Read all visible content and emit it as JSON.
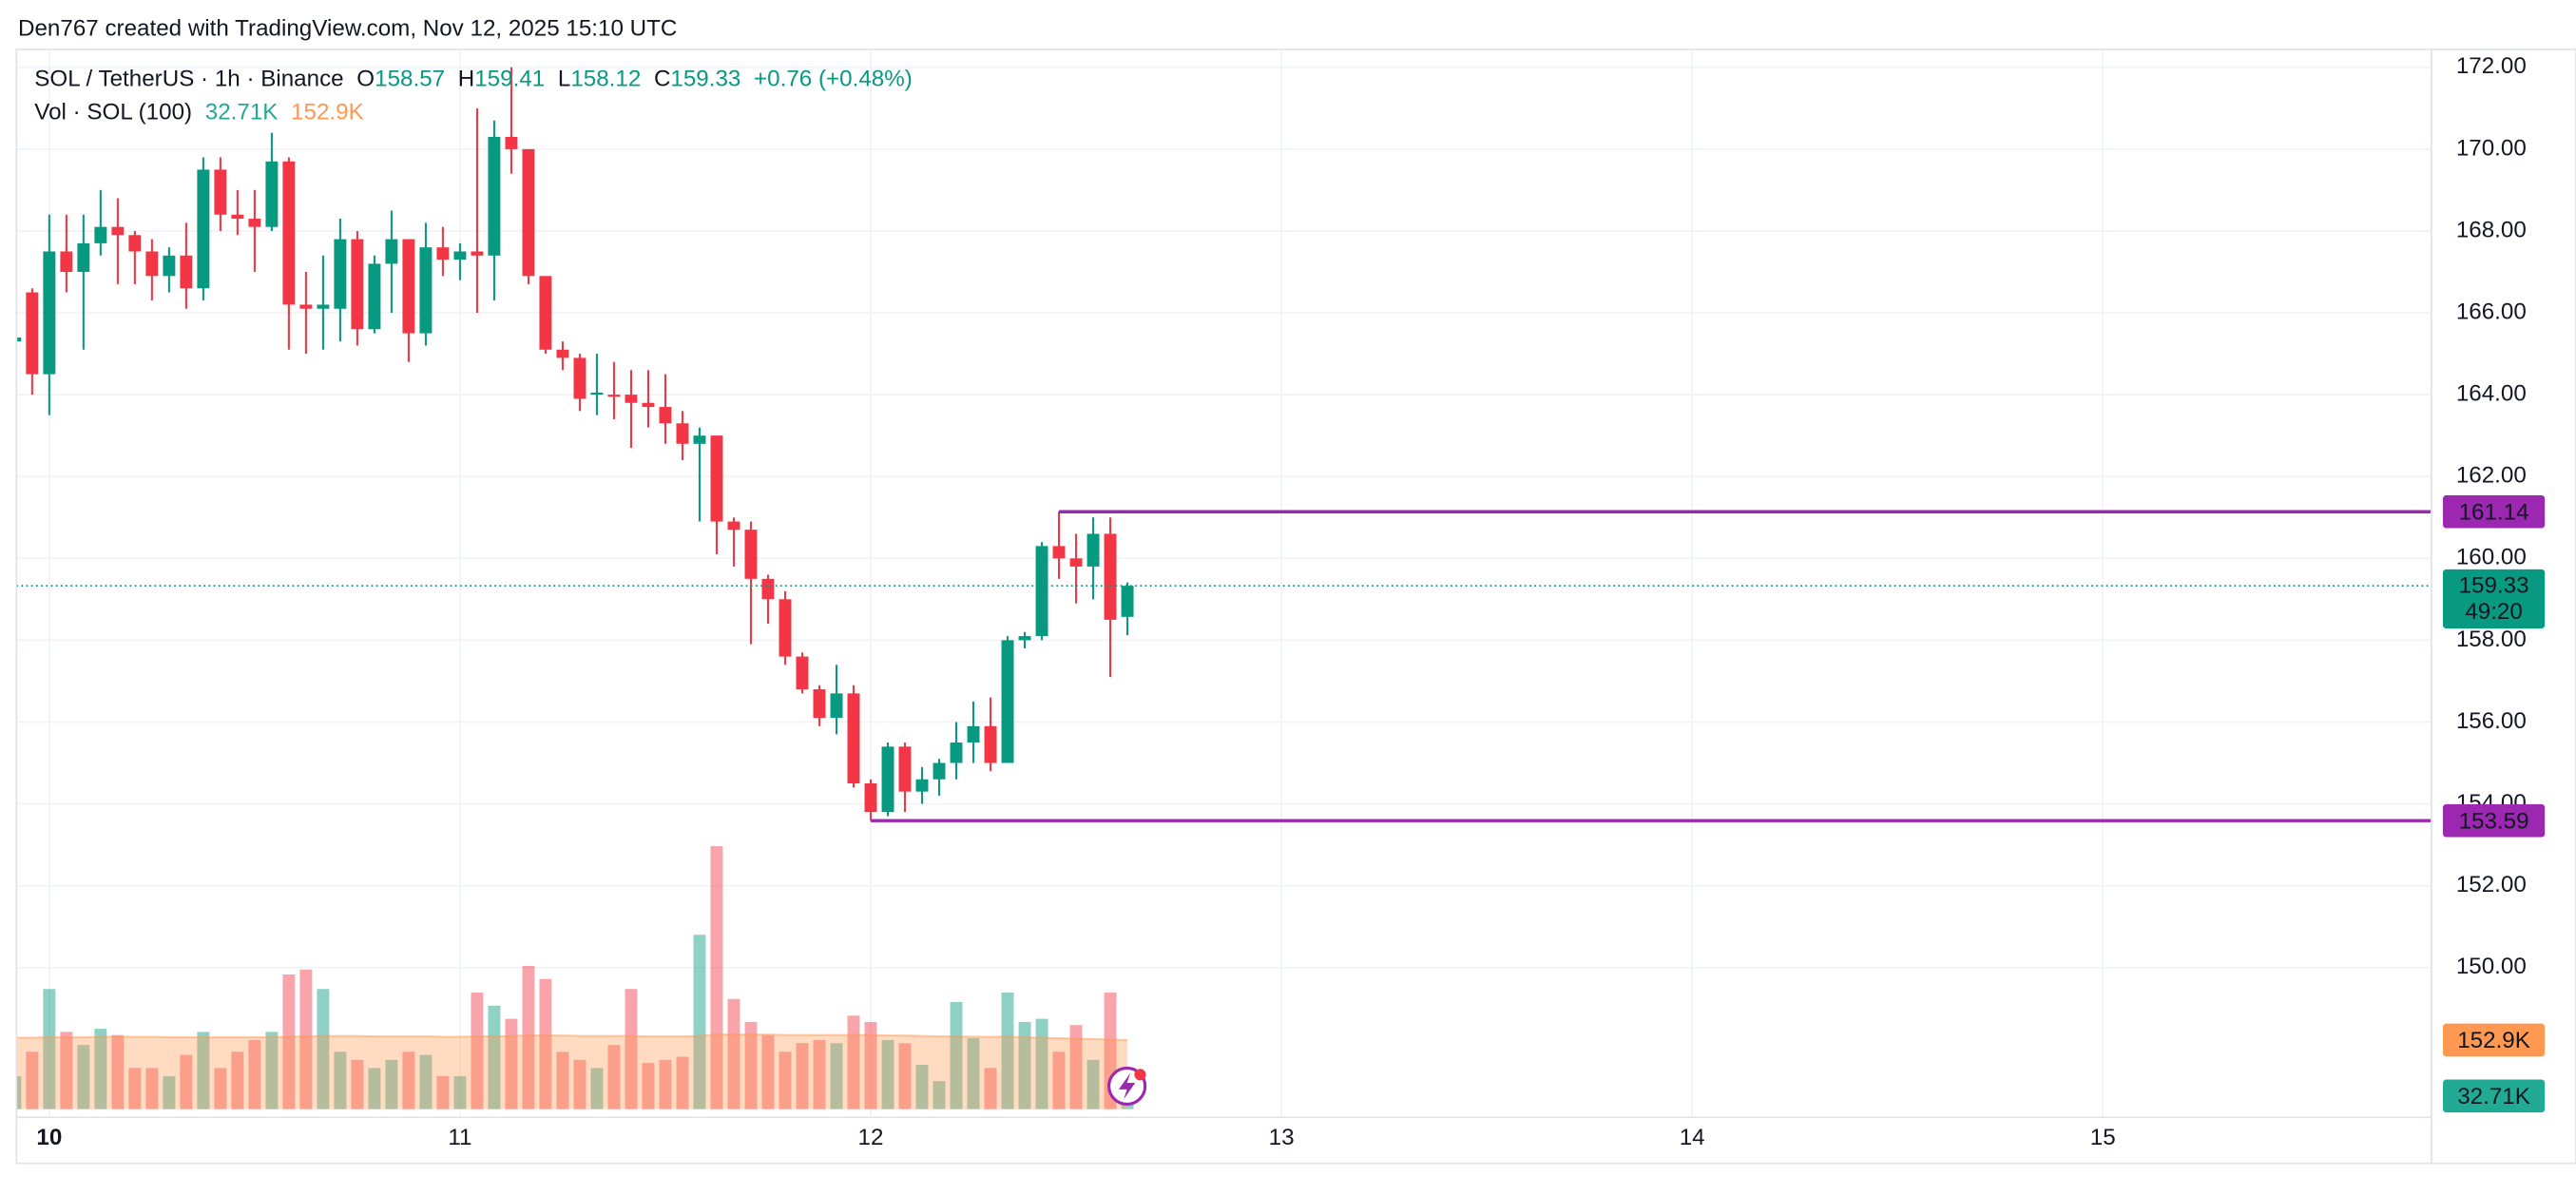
{
  "header": {
    "attribution": "Den767 created with TradingView.com, Nov 12, 2025 15:10 UTC"
  },
  "chart_data": {
    "type": "candlestick",
    "symbol": "SOL / TetherUS · 1h · Binance",
    "ohlc_letters": [
      "O",
      "H",
      "L",
      "C"
    ],
    "change": "+0.76 (+0.48%)",
    "volume_title": "Vol · SOL (100)",
    "last_volume_label": "32.71K",
    "volume_ma_label": "152.9K",
    "countdown": "49:20",
    "up_color": "#089981",
    "down_color": "#f23645",
    "volume_ma_color": "#ff9850",
    "x": [
      9.9167,
      9.9583,
      10,
      10.0417,
      10.0833,
      10.125,
      10.1667,
      10.2083,
      10.25,
      10.2917,
      10.3333,
      10.375,
      10.4167,
      10.4583,
      10.5,
      10.5417,
      10.5833,
      10.625,
      10.6667,
      10.7083,
      10.75,
      10.7917,
      10.8333,
      10.875,
      10.9167,
      10.9583,
      11,
      11.0417,
      11.0833,
      11.125,
      11.1667,
      11.2083,
      11.25,
      11.2917,
      11.3333,
      11.375,
      11.4167,
      11.4583,
      11.5,
      11.5417,
      11.5833,
      11.625,
      11.6667,
      11.7083,
      11.75,
      11.7917,
      11.8333,
      11.875,
      11.9167,
      11.9583,
      12,
      12.0417,
      12.0833,
      12.125,
      12.1667,
      12.2083,
      12.25,
      12.2917,
      12.3333,
      12.375,
      12.4167,
      12.4583,
      12.5,
      12.5417,
      12.5833,
      12.625
    ],
    "open": [
      165.3,
      166.5,
      164.5,
      167.5,
      167.0,
      167.7,
      168.1,
      167.9,
      167.5,
      166.9,
      167.4,
      166.6,
      169.5,
      168.4,
      168.3,
      168.1,
      169.7,
      166.2,
      166.1,
      166.1,
      167.8,
      165.6,
      167.2,
      167.8,
      165.5,
      167.6,
      167.3,
      167.5,
      167.4,
      170.3,
      170.0,
      166.9,
      165.1,
      164.9,
      164.0,
      164.0,
      164.0,
      163.8,
      163.7,
      163.3,
      162.8,
      163.0,
      160.9,
      160.7,
      159.5,
      159.0,
      157.6,
      156.8,
      156.1,
      156.7,
      154.5,
      153.8,
      155.4,
      154.3,
      154.6,
      155.0,
      155.5,
      155.9,
      155.0,
      158.0,
      158.1,
      160.3,
      160.0,
      159.8,
      160.6,
      158.57
    ],
    "high": [
      165.5,
      166.6,
      168.4,
      168.4,
      168.4,
      169.0,
      168.8,
      168.0,
      167.8,
      167.6,
      168.2,
      169.8,
      169.8,
      169.0,
      169.0,
      170.4,
      169.8,
      167.0,
      167.4,
      168.3,
      168.0,
      167.4,
      168.5,
      167.8,
      168.2,
      168.1,
      167.7,
      171.0,
      170.7,
      172.0,
      170.0,
      166.9,
      165.3,
      165.0,
      165.0,
      164.8,
      164.6,
      164.6,
      164.5,
      163.6,
      163.2,
      163.0,
      161.0,
      160.9,
      159.6,
      159.2,
      157.7,
      156.9,
      157.4,
      156.9,
      154.6,
      155.5,
      155.5,
      154.9,
      155.1,
      156.0,
      156.5,
      156.6,
      158.1,
      158.2,
      160.4,
      161.14,
      160.6,
      161.0,
      161.0,
      159.41
    ],
    "low": [
      165.2,
      164.0,
      163.5,
      166.5,
      165.1,
      167.4,
      166.7,
      166.7,
      166.3,
      166.5,
      166.1,
      166.3,
      168.0,
      167.9,
      167.0,
      168.0,
      165.1,
      165.0,
      165.1,
      165.3,
      165.2,
      165.5,
      166.0,
      164.8,
      165.2,
      166.9,
      166.8,
      166.0,
      166.3,
      169.4,
      166.7,
      165.0,
      164.6,
      163.6,
      163.5,
      163.4,
      162.7,
      163.2,
      162.8,
      162.4,
      160.9,
      160.1,
      159.8,
      157.9,
      158.4,
      157.4,
      156.7,
      155.9,
      155.7,
      154.4,
      153.59,
      153.7,
      153.8,
      154.0,
      154.2,
      154.6,
      155.0,
      154.8,
      155.0,
      157.8,
      158.0,
      159.5,
      158.9,
      159.0,
      157.1,
      158.12
    ],
    "close": [
      165.4,
      164.5,
      167.5,
      167.0,
      167.7,
      168.1,
      167.9,
      167.5,
      166.9,
      167.4,
      166.6,
      169.5,
      168.4,
      168.3,
      168.1,
      169.7,
      166.2,
      166.1,
      166.2,
      167.8,
      165.6,
      167.2,
      167.8,
      165.5,
      167.6,
      167.3,
      167.5,
      167.4,
      170.3,
      170.0,
      166.9,
      165.1,
      164.9,
      163.9,
      164.05,
      163.95,
      163.8,
      163.7,
      163.3,
      162.8,
      163.0,
      160.9,
      160.7,
      159.5,
      159.0,
      157.6,
      156.8,
      156.1,
      156.7,
      154.5,
      153.8,
      155.4,
      154.3,
      154.6,
      155.0,
      155.5,
      155.9,
      155.0,
      158.0,
      158.1,
      160.3,
      160.0,
      159.8,
      160.6,
      158.5,
      159.33
    ],
    "volume": [
      73,
      127,
      266,
      171,
      142,
      178,
      164,
      91,
      91,
      73,
      120,
      171,
      91,
      127,
      153,
      171,
      298,
      309,
      266,
      127,
      109,
      91,
      109,
      127,
      120,
      73,
      73,
      258,
      229,
      200,
      317,
      288,
      127,
      109,
      91,
      142,
      266,
      102,
      109,
      116,
      386,
      582,
      244,
      193,
      164,
      127,
      146,
      153,
      146,
      207,
      193,
      153,
      146,
      98,
      62,
      237,
      157,
      91,
      258,
      193,
      200,
      127,
      186,
      109,
      258,
      32.71
    ],
    "volume_ma": [
      158,
      158,
      159,
      159,
      159,
      160,
      160,
      160,
      160,
      159,
      159,
      159,
      159,
      159,
      159,
      159,
      160,
      161,
      162,
      162,
      162,
      161,
      161,
      161,
      161,
      160,
      160,
      161,
      161,
      162,
      163,
      163,
      163,
      162,
      162,
      162,
      162,
      161,
      161,
      161,
      162,
      165,
      165,
      165,
      165,
      164,
      164,
      164,
      164,
      164,
      164,
      163,
      163,
      162,
      161,
      161,
      160,
      160,
      160,
      159,
      158,
      157,
      156,
      155,
      154,
      152.9
    ],
    "levels": [
      {
        "value": 161.14,
        "start": 12.4583,
        "color": "#9c27b0"
      },
      {
        "value": 153.59,
        "start": 12,
        "color": "#9c27b0"
      }
    ],
    "xlim": [
      9.92,
      15.8
    ],
    "xticks": [
      10,
      11,
      12,
      13,
      14,
      15
    ],
    "ylim": [
      146.54,
      172.32
    ],
    "yticks": [
      {
        "value": 150,
        "label": "150.00"
      },
      {
        "value": 152,
        "label": "152.00"
      },
      {
        "value": 154,
        "label": "154.00"
      },
      {
        "value": 156,
        "label": "156.00"
      },
      {
        "value": 158,
        "label": "158.00"
      },
      {
        "value": 160,
        "label": "160.00"
      },
      {
        "value": 162,
        "label": "162.00"
      },
      {
        "value": 164,
        "label": "164.00"
      },
      {
        "value": 166,
        "label": "166.00"
      },
      {
        "value": 168,
        "label": "168.00"
      },
      {
        "value": 170,
        "label": "170.00"
      },
      {
        "value": 172,
        "label": "172.00"
      }
    ],
    "grid": true
  }
}
